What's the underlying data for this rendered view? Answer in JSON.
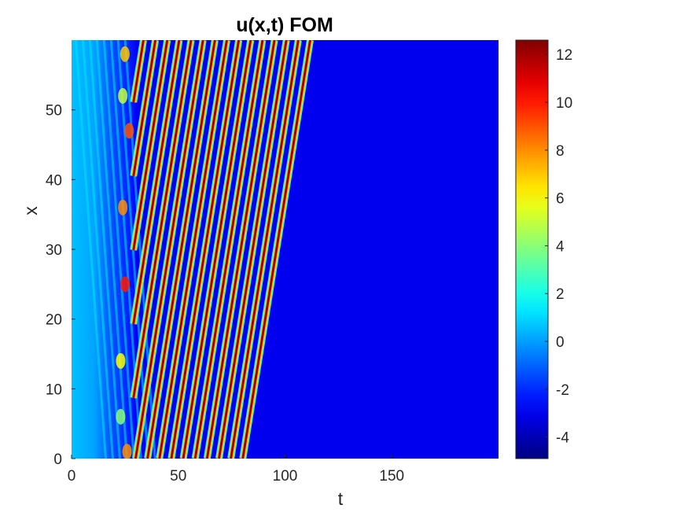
{
  "chart_data": {
    "type": "heatmap",
    "title": "u(x,t) FOM",
    "xlabel": "t",
    "ylabel": "x",
    "xlim": [
      0,
      200
    ],
    "ylim": [
      0,
      60
    ],
    "x_ticks": [
      0,
      50,
      100,
      150
    ],
    "x_tick_labels": [
      "0",
      "50",
      "100",
      "150"
    ],
    "y_ticks": [
      0,
      10,
      20,
      30,
      40,
      50
    ],
    "y_tick_labels": [
      "0",
      "10",
      "20",
      "30",
      "40",
      "50"
    ],
    "colorbar": {
      "colormap": "jet",
      "range": [
        -4.9,
        12.6
      ],
      "ticks": [
        -4,
        -2,
        0,
        2,
        4,
        6,
        8,
        10,
        12
      ],
      "tick_labels": [
        "-4",
        "-2",
        "0",
        "2",
        "4",
        "6",
        "8",
        "10",
        "12"
      ]
    },
    "features": {
      "background_value": -3,
      "wave_peak_value": 12,
      "transient_end_t": 30,
      "wave_period_x": 10.6,
      "wave_speed_dx_dt": 1.9,
      "early_region_value": 0.5
    },
    "grid": false
  }
}
